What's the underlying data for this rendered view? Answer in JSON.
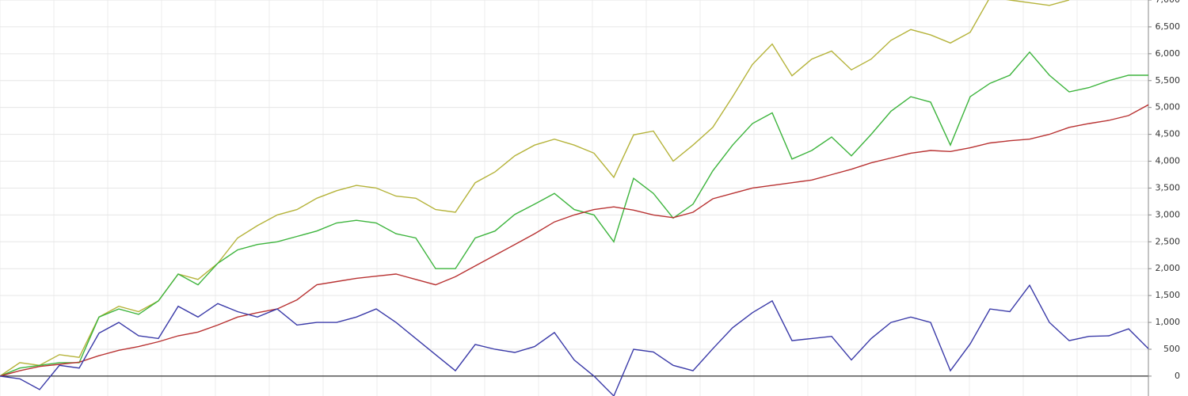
{
  "chart_data": {
    "type": "line",
    "categories": [
      null,
      null,
      null,
      null,
      null,
      null,
      null,
      null,
      null,
      null,
      null,
      null,
      null,
      null,
      null,
      null,
      null,
      null,
      null,
      null,
      null,
      null,
      null,
      null,
      null,
      null,
      null,
      null,
      null,
      null,
      null,
      null,
      null,
      null,
      null,
      null,
      null,
      null,
      null,
      null,
      null,
      null,
      null,
      null,
      null,
      null,
      null,
      null,
      null,
      null,
      null,
      null,
      null,
      null,
      null,
      null,
      null,
      null,
      null
    ],
    "series": [
      {
        "color": "#b5b33a",
        "values": [
          0,
          250,
          200,
          400,
          350,
          1100,
          1300,
          1200,
          1400,
          1900,
          1800,
          2100,
          2570,
          2800,
          3000,
          3100,
          3310,
          3450,
          3550,
          3500,
          3350,
          3310,
          3100,
          3050,
          3600,
          3800,
          4100,
          4300,
          4410,
          4300,
          4150,
          3700,
          4490,
          4560,
          4000,
          4300,
          4630,
          5200,
          5800,
          6180,
          5590,
          5900,
          6050,
          5700,
          5900,
          6250,
          6450,
          6350,
          6200,
          6400,
          7050,
          7000,
          6950,
          6900,
          7000,
          null,
          null,
          null,
          null
        ]
      },
      {
        "color": "#3db43d",
        "values": [
          0,
          150,
          200,
          250,
          250,
          1100,
          1250,
          1150,
          1400,
          1900,
          1700,
          2100,
          2350,
          2450,
          2500,
          2600,
          2700,
          2850,
          2900,
          2850,
          2650,
          2570,
          2000,
          2000,
          2570,
          2700,
          3010,
          3200,
          3400,
          3100,
          3000,
          2500,
          3680,
          3400,
          2940,
          3200,
          3820,
          4300,
          4700,
          4900,
          4040,
          4200,
          4450,
          4100,
          4500,
          4930,
          5200,
          5100,
          4300,
          5200,
          5450,
          5600,
          6030,
          5600,
          5290,
          5370,
          5500,
          5600,
          5600
        ]
      },
      {
        "color": "#b83232",
        "values": [
          0,
          100,
          180,
          220,
          260,
          380,
          480,
          550,
          640,
          750,
          820,
          950,
          1100,
          1180,
          1250,
          1420,
          1700,
          1760,
          1820,
          1860,
          1900,
          1800,
          1700,
          1850,
          2050,
          2250,
          2450,
          2650,
          2870,
          3000,
          3100,
          3150,
          3090,
          3000,
          2950,
          3050,
          3300,
          3400,
          3500,
          3550,
          3600,
          3650,
          3750,
          3850,
          3970,
          4060,
          4150,
          4200,
          4180,
          4250,
          4340,
          4380,
          4410,
          4500,
          4630,
          4700,
          4760,
          4850,
          5050
        ]
      },
      {
        "color": "#3a3aa8",
        "values": [
          0,
          -50,
          -250,
          200,
          150,
          800,
          1000,
          750,
          700,
          1300,
          1100,
          1350,
          1200,
          1100,
          1250,
          950,
          1000,
          1000,
          1100,
          1250,
          1000,
          700,
          400,
          100,
          590,
          500,
          440,
          550,
          810,
          300,
          0,
          -370,
          500,
          450,
          200,
          100,
          510,
          900,
          1180,
          1400,
          660,
          700,
          740,
          300,
          700,
          1000,
          1100,
          1000,
          100,
          600,
          1250,
          1200,
          1690,
          1000,
          660,
          740,
          750,
          880,
          510
        ]
      }
    ],
    "ylim": [
      -370,
      7000
    ],
    "yticks": [
      0,
      500,
      {
        "value": 1000,
        "label": "1,000"
      },
      {
        "value": 1500,
        "label": "1,500"
      },
      {
        "value": 2000,
        "label": "2,000"
      },
      {
        "value": 2500,
        "label": "2,500"
      },
      {
        "value": 3000,
        "label": "3,000"
      },
      {
        "value": 3500,
        "label": "3,500"
      },
      {
        "value": 4000,
        "label": "4,000"
      },
      {
        "value": 4500,
        "label": "4,500"
      },
      {
        "value": 5000,
        "label": "5,000"
      },
      {
        "value": 5500,
        "label": "5,500"
      },
      {
        "value": 6000,
        "label": "6,000"
      },
      {
        "value": 6500,
        "label": "6,500"
      },
      {
        "value": 7000,
        "label": "7,000"
      }
    ],
    "grid": true
  }
}
